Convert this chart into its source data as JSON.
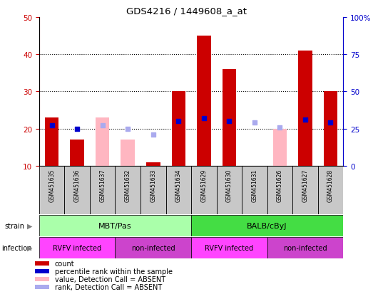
{
  "title": "GDS4216 / 1449608_a_at",
  "samples": [
    "GSM451635",
    "GSM451636",
    "GSM451637",
    "GSM451632",
    "GSM451633",
    "GSM451634",
    "GSM451629",
    "GSM451630",
    "GSM451631",
    "GSM451626",
    "GSM451627",
    "GSM451628"
  ],
  "count_values": [
    23,
    17,
    null,
    null,
    11,
    30,
    45,
    36,
    null,
    null,
    41,
    30
  ],
  "count_absent": [
    null,
    null,
    23,
    17,
    null,
    null,
    null,
    null,
    null,
    20,
    null,
    null
  ],
  "percentile_present": [
    27,
    25,
    null,
    null,
    null,
    30,
    32,
    30,
    null,
    null,
    31,
    29
  ],
  "percentile_absent": [
    null,
    null,
    27,
    25,
    21,
    null,
    null,
    null,
    29,
    26,
    null,
    null
  ],
  "ylim_left": [
    10,
    50
  ],
  "ylim_right": [
    0,
    100
  ],
  "yticks_left": [
    10,
    20,
    30,
    40,
    50
  ],
  "yticks_right": [
    0,
    25,
    50,
    75,
    100
  ],
  "ytick_labels_right": [
    "0",
    "25",
    "50",
    "75",
    "100%"
  ],
  "strain_labels": [
    [
      "MBT/Pas",
      0,
      6
    ],
    [
      "BALB/cByJ",
      6,
      12
    ]
  ],
  "infection_labels": [
    [
      "RVFV infected",
      0,
      3
    ],
    [
      "non-infected",
      3,
      6
    ],
    [
      "RVFV infected",
      6,
      9
    ],
    [
      "non-infected",
      9,
      12
    ]
  ],
  "strain_color_left": "#AAFFAA",
  "strain_color_right": "#44DD44",
  "infection_color_rvfv": "#FF44FF",
  "infection_color_non": "#CC44CC",
  "bar_color_red": "#CC0000",
  "bar_color_pink": "#FFB6C1",
  "dot_color_blue": "#0000CC",
  "dot_color_lightblue": "#AAAAEE",
  "left_axis_color": "#CC0000",
  "right_axis_color": "#0000CC",
  "bar_width": 0.55,
  "dot_size": 25
}
